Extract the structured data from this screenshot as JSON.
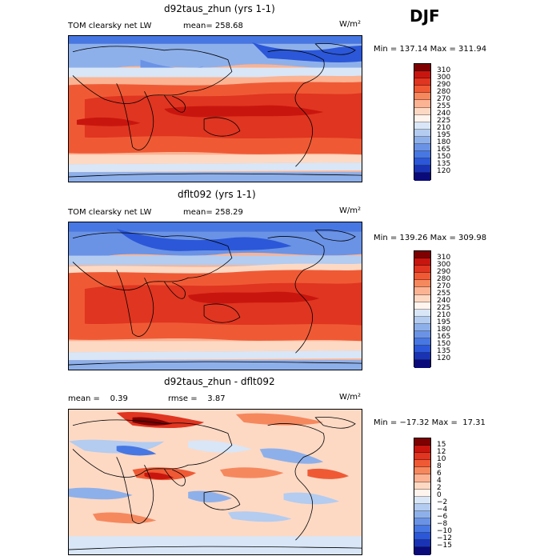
{
  "season": "DJF",
  "panels": [
    {
      "title": "d92taus_zhun (yrs 1-1)",
      "left_label": "TOM clearsky net LW",
      "center_label": "mean= 258.68",
      "units": "W/m²",
      "minmax": "Min = 137.14 Max = 311.94",
      "colorbar": {
        "levels": [
          "310",
          "300",
          "290",
          "280",
          "270",
          "255",
          "240",
          "225",
          "210",
          "195",
          "180",
          "165",
          "150",
          "135",
          "120"
        ],
        "colors": [
          "#7f0000",
          "#c8160f",
          "#e03520",
          "#ef5a35",
          "#f6885e",
          "#fbb393",
          "#fdd9c4",
          "#fff5ee",
          "#d8e6f7",
          "#b3ccf0",
          "#8eb0ea",
          "#6a93e6",
          "#4777e2",
          "#2b57d8",
          "#1a33b4",
          "#0a0a7a"
        ]
      }
    },
    {
      "title": "dflt092 (yrs 1-1)",
      "left_label": "TOM clearsky net LW",
      "center_label": "mean= 258.29",
      "units": "W/m²",
      "minmax": "Min = 139.26 Max = 309.98",
      "colorbar": {
        "levels": [
          "310",
          "300",
          "290",
          "280",
          "270",
          "255",
          "240",
          "225",
          "210",
          "195",
          "180",
          "165",
          "150",
          "135",
          "120"
        ],
        "colors": [
          "#7f0000",
          "#c8160f",
          "#e03520",
          "#ef5a35",
          "#f6885e",
          "#fbb393",
          "#fdd9c4",
          "#fff5ee",
          "#d8e6f7",
          "#b3ccf0",
          "#8eb0ea",
          "#6a93e6",
          "#4777e2",
          "#2b57d8",
          "#1a33b4",
          "#0a0a7a"
        ]
      }
    },
    {
      "title": "d92taus_zhun - dflt092",
      "left_label": "mean =    0.39",
      "center_label": "rmse =    3.87",
      "units": "W/m²",
      "minmax": "Min = −17.32 Max =  17.31",
      "colorbar": {
        "levels": [
          "15",
          "12",
          "10",
          "8",
          "6",
          "4",
          "2",
          "0",
          "−2",
          "−4",
          "−6",
          "−8",
          "−10",
          "−12",
          "−15"
        ],
        "colors": [
          "#7f0000",
          "#c8160f",
          "#e03520",
          "#ef5a35",
          "#f6885e",
          "#fbb393",
          "#fdd9c4",
          "#fff5ee",
          "#d8e6f7",
          "#b3ccf0",
          "#8eb0ea",
          "#6a93e6",
          "#4777e2",
          "#2b57d8",
          "#1a33b4",
          "#0a0a7a"
        ]
      }
    }
  ]
}
